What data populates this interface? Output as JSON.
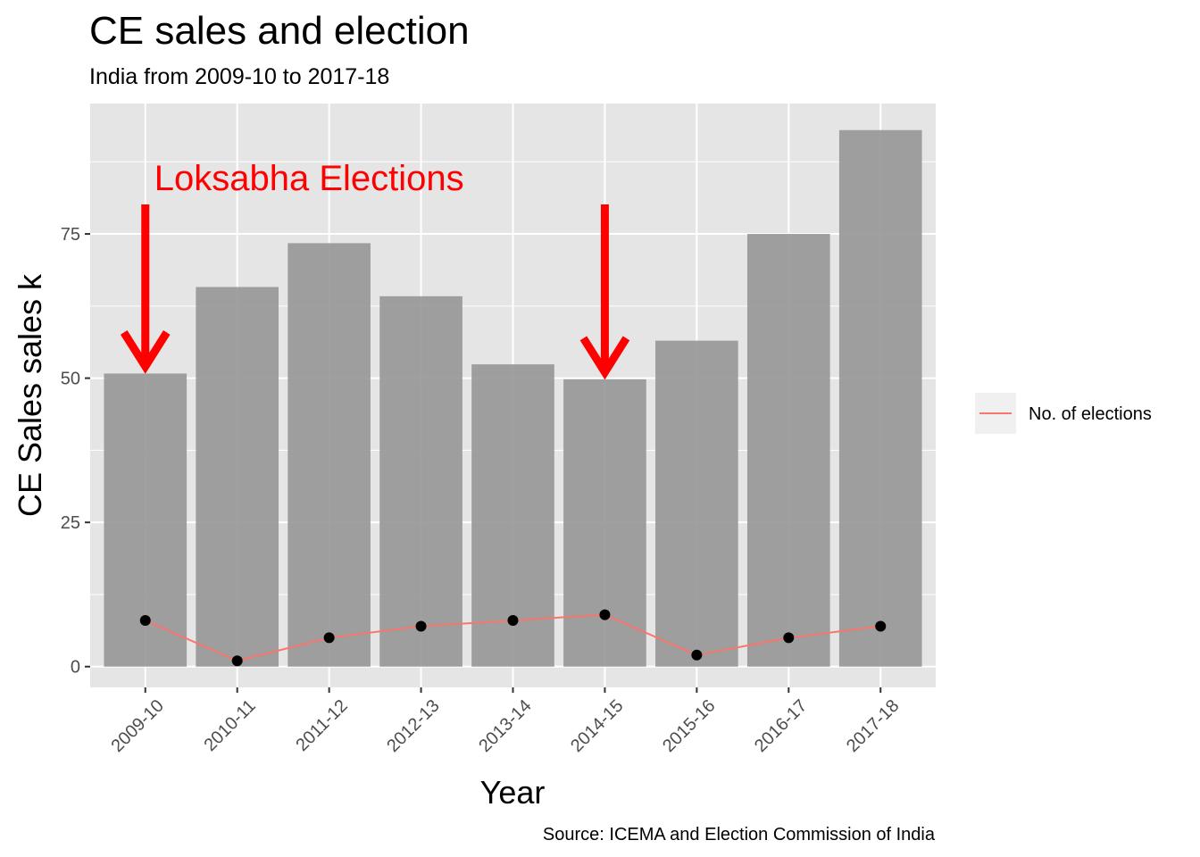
{
  "chart_data": {
    "type": "bar",
    "title": "CE sales and election",
    "subtitle": "India from 2009-10 to 2017-18",
    "xlabel": "Year",
    "ylabel": "CE Sales sales k",
    "caption": "Source: ICEMA and Election Commission of India",
    "categories": [
      "2009-10",
      "2010-11",
      "2011-12",
      "2012-13",
      "2013-14",
      "2014-15",
      "2015-16",
      "2016-17",
      "2017-18"
    ],
    "series": [
      {
        "kind": "bar",
        "values": [
          50.8,
          65.8,
          73.4,
          64.2,
          52.4,
          49.8,
          56.5,
          75.0,
          93.0
        ]
      },
      {
        "kind": "line",
        "name": "No. of elections",
        "values": [
          8,
          1,
          5,
          7,
          8,
          9,
          2,
          5,
          7
        ]
      }
    ],
    "yticks": [
      0,
      25,
      50,
      75
    ],
    "ylim": [
      -3.6,
      97.6
    ],
    "annotation": {
      "text": "Loksabha Elections",
      "arrows_at": [
        "2009-10",
        "2014-15"
      ]
    },
    "grid": true,
    "legend_position": "right",
    "colors": {
      "panel_bg": "#e5e5e5",
      "grid": "#ffffff",
      "bar": "#999999",
      "line": "#f8766d",
      "point": "#000000",
      "annotation": "#ff0000",
      "legend_key_bg": "#f0f0f0"
    }
  }
}
